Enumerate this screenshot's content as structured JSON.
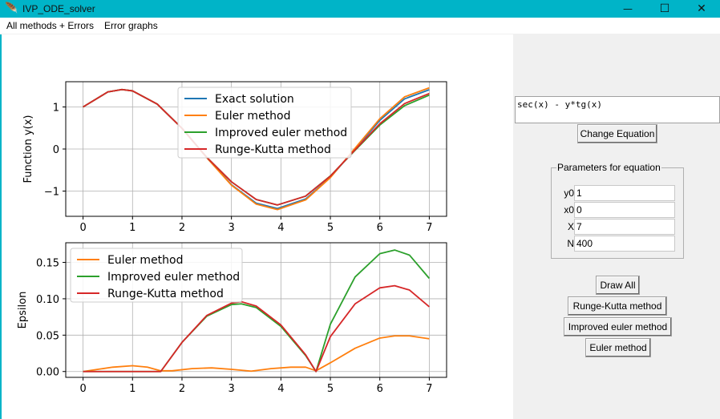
{
  "window": {
    "title": "IVP_ODE_solver",
    "icon": "feather-icon",
    "controls": {
      "minimize": "—",
      "maximize": "☐",
      "close": "✕"
    },
    "titlebar_color": "#00b4c8"
  },
  "menu": {
    "items": [
      "All methods + Errors",
      "Error graphs"
    ]
  },
  "equation": {
    "value": "sec(x) - y*tg(x)"
  },
  "buttons": {
    "change_equation": "Change Equation",
    "draw_all": "Draw All",
    "runge_kutta": "Runge-Kutta method",
    "improved_euler": "Improved euler method",
    "euler": "Euler method"
  },
  "parameters": {
    "title": "Parameters for equation",
    "fields": [
      {
        "label": "y0",
        "value": "1"
      },
      {
        "label": "x0",
        "value": "0"
      },
      {
        "label": "X",
        "value": "7"
      },
      {
        "label": "N",
        "value": "400"
      }
    ]
  },
  "chart_data": [
    {
      "type": "line",
      "ylabel": "Function y(x)",
      "xlim": [
        -0.35,
        7.35
      ],
      "ylim": [
        -1.6,
        1.6
      ],
      "xticks": [
        0,
        1,
        2,
        3,
        4,
        5,
        6,
        7
      ],
      "yticks": [
        -1,
        0,
        1
      ],
      "ytick_labels": [
        "−1",
        "0",
        "1"
      ],
      "grid": true,
      "legend_position": "top-center",
      "series": [
        {
          "name": "Exact solution",
          "color": "#1f77b4",
          "x": [
            0,
            0.5,
            0.785,
            1,
            1.5,
            2,
            2.5,
            3,
            3.5,
            3.93,
            4.5,
            5,
            5.5,
            6,
            6.5,
            7
          ],
          "y": [
            1,
            1.357,
            1.414,
            1.382,
            1.068,
            0.493,
            -0.203,
            -0.849,
            -1.287,
            -1.414,
            -1.188,
            -0.675,
            0.003,
            0.681,
            1.192,
            1.41
          ]
        },
        {
          "name": "Euler method",
          "color": "#ff7f0e",
          "x": [
            0,
            0.5,
            0.785,
            1,
            1.5,
            2,
            2.5,
            3,
            3.5,
            3.93,
            4.5,
            5,
            5.5,
            6,
            6.5,
            7
          ],
          "y": [
            1,
            1.357,
            1.414,
            1.382,
            1.068,
            0.493,
            -0.205,
            -0.86,
            -1.31,
            -1.44,
            -1.21,
            -0.68,
            0.02,
            0.72,
            1.24,
            1.455
          ]
        },
        {
          "name": "Improved euler method",
          "color": "#2ca02c",
          "x": [
            0,
            0.5,
            0.785,
            1,
            1.5,
            2,
            2.5,
            3,
            3.5,
            3.93,
            4.5,
            5,
            5.5,
            6,
            6.5,
            7
          ],
          "y": [
            1,
            1.357,
            1.414,
            1.382,
            1.068,
            0.493,
            -0.195,
            -0.78,
            -1.2,
            -1.33,
            -1.12,
            -0.64,
            -0.03,
            0.57,
            1.03,
            1.283
          ]
        },
        {
          "name": "Runge-Kutta method",
          "color": "#d62728",
          "x": [
            0,
            0.5,
            0.785,
            1,
            1.5,
            2,
            2.5,
            3,
            3.5,
            3.93,
            4.5,
            5,
            5.5,
            6,
            6.5,
            7
          ],
          "y": [
            1,
            1.357,
            1.414,
            1.382,
            1.068,
            0.493,
            -0.195,
            -0.78,
            -1.2,
            -1.33,
            -1.12,
            -0.645,
            -0.02,
            0.6,
            1.08,
            1.32
          ]
        }
      ]
    },
    {
      "type": "line",
      "ylabel": "Epsilon",
      "xlim": [
        -0.35,
        7.35
      ],
      "ylim": [
        -0.008,
        0.177
      ],
      "xticks": [
        0,
        1,
        2,
        3,
        4,
        5,
        6,
        7
      ],
      "yticks": [
        0,
        0.05,
        0.1,
        0.15
      ],
      "ytick_labels": [
        "0.00",
        "0.05",
        "0.10",
        "0.15"
      ],
      "grid": true,
      "legend_position": "top-left",
      "series": [
        {
          "name": "Euler method",
          "color": "#ff7f0e",
          "x": [
            0,
            0.3,
            0.6,
            1,
            1.3,
            1.57,
            1.8,
            2.2,
            2.6,
            3,
            3.4,
            3.8,
            4.2,
            4.5,
            4.71,
            5.0,
            5.5,
            6.0,
            6.3,
            6.6,
            7.0
          ],
          "y": [
            0,
            0.003,
            0.006,
            0.008,
            0.006,
            0.001,
            0.001,
            0.004,
            0.005,
            0.003,
            0.0005,
            0.004,
            0.006,
            0.006,
            0.001,
            0.012,
            0.032,
            0.046,
            0.049,
            0.049,
            0.045
          ]
        },
        {
          "name": "Improved euler method",
          "color": "#2ca02c",
          "x": [
            0,
            1.57,
            2.0,
            2.5,
            3.0,
            3.2,
            3.5,
            4.0,
            4.5,
            4.71,
            5.0,
            5.5,
            6.0,
            6.3,
            6.6,
            7.0
          ],
          "y": [
            0,
            0,
            0.04,
            0.076,
            0.092,
            0.093,
            0.088,
            0.062,
            0.022,
            0,
            0.065,
            0.13,
            0.162,
            0.167,
            0.16,
            0.128
          ]
        },
        {
          "name": "Runge-Kutta method",
          "color": "#d62728",
          "x": [
            0,
            1.57,
            2.0,
            2.5,
            3.0,
            3.2,
            3.5,
            4.0,
            4.5,
            4.71,
            5.0,
            5.5,
            6.0,
            6.3,
            6.6,
            7.0
          ],
          "y": [
            0,
            0,
            0.04,
            0.077,
            0.094,
            0.096,
            0.09,
            0.064,
            0.023,
            0,
            0.048,
            0.093,
            0.115,
            0.118,
            0.112,
            0.089
          ]
        }
      ]
    }
  ]
}
